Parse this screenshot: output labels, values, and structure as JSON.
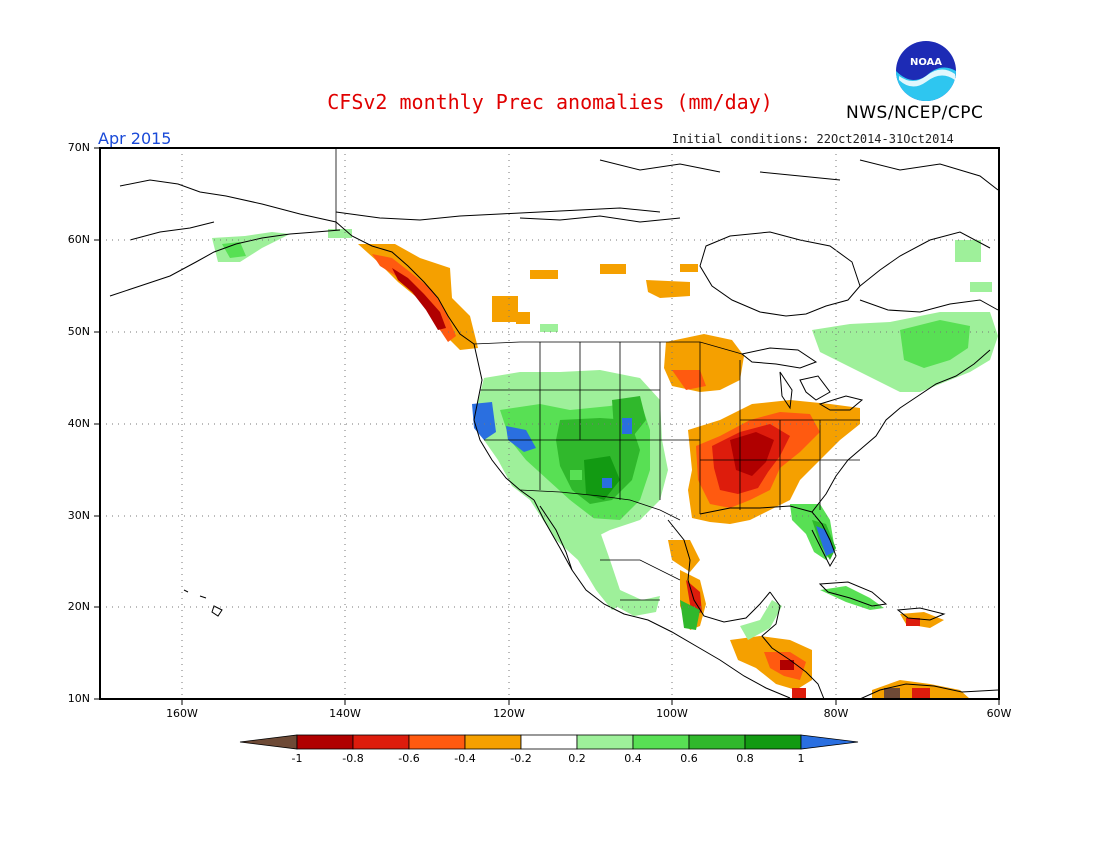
{
  "title": "CFSv2 monthly Prec anomalies (mm/day)",
  "organization": "NWS/NCEP/CPC",
  "logo_text": "NOAA",
  "valid_month": "Apr 2015",
  "initial_conditions": "Initial conditions: 22Oct2014-31Oct2014",
  "lat_labels": [
    "70N",
    "60N",
    "50N",
    "40N",
    "30N",
    "20N",
    "10N"
  ],
  "lon_labels": [
    "160W",
    "140W",
    "120W",
    "100W",
    "80W",
    "60W"
  ],
  "map_extent": {
    "lon": [
      -170,
      -60
    ],
    "lat": [
      10,
      70
    ]
  },
  "colorbar": {
    "labels": [
      "-1",
      "-0.8",
      "-0.6",
      "-0.4",
      "-0.2",
      "0.2",
      "0.4",
      "0.6",
      "0.8",
      "1"
    ],
    "colors": [
      "#6e4a36",
      "#b00000",
      "#dd1c0c",
      "#ff5a10",
      "#f5a000",
      "#ffffff",
      "#9ef09a",
      "#58e054",
      "#30b82c",
      "#129a12",
      "#2a6fe0"
    ]
  },
  "anomaly_colors": {
    "dry_strong": "#b00000",
    "dry": "#dd1c0c",
    "dry_mod": "#ff5a10",
    "dry_weak": "#f5a000",
    "wet_weak": "#9ef09a",
    "wet_mod": "#58e054",
    "wet": "#30b82c",
    "wet_strong": "#129a12",
    "wet_extreme": "#2a6fe0"
  }
}
